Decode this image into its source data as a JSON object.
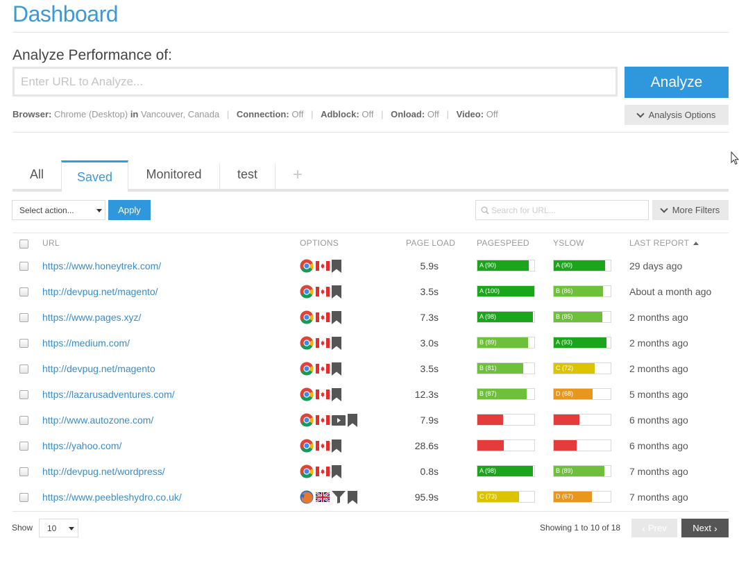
{
  "page": {
    "title": "Dashboard"
  },
  "analyze": {
    "heading": "Analyze Performance of:",
    "placeholder": "Enter URL to Analyze...",
    "button": "Analyze",
    "options_button": "Analysis Options"
  },
  "settings": {
    "browser_label": "Browser:",
    "browser_value": "Chrome (Desktop)",
    "in_label": "in",
    "location_value": "Vancouver, Canada",
    "connection_label": "Connection:",
    "connection_value": "Off",
    "adblock_label": "Adblock:",
    "adblock_value": "Off",
    "onload_label": "Onload:",
    "onload_value": "Off",
    "video_label": "Video:",
    "video_value": "Off",
    "separator": "|"
  },
  "tabs": [
    {
      "label": "All"
    },
    {
      "label": "Saved",
      "active": true
    },
    {
      "label": "Monitored"
    },
    {
      "label": "test"
    },
    {
      "label": "+"
    }
  ],
  "toolbar": {
    "select_action": "Select action...",
    "apply": "Apply",
    "search_placeholder": "Search for URL...",
    "more_filters": "More Filters"
  },
  "table": {
    "headers": {
      "url": "URL",
      "options": "OPTIONS",
      "page_load": "PAGE LOAD",
      "pagespeed": "PAGESPEED",
      "yslow": "YSLOW",
      "last_report": "LAST REPORT"
    },
    "sort": "last_report ascending",
    "rows": [
      {
        "url": "https://www.honeytrek.com/",
        "icons": [
          "chrome-icon",
          "canada-flag-icon",
          "bookmark-icon"
        ],
        "page_load": "5.9s",
        "pagespeed": {
          "label": "A (90)",
          "score": 90,
          "color": "#1aa51a"
        },
        "yslow": {
          "label": "A (90)",
          "score": 90,
          "color": "#1aa51a"
        },
        "last_report": "29 days ago"
      },
      {
        "url": "http://devpug.net/magento/",
        "icons": [
          "chrome-icon",
          "canada-flag-icon",
          "bookmark-icon"
        ],
        "page_load": "3.5s",
        "pagespeed": {
          "label": "A (100)",
          "score": 100,
          "color": "#1aa51a"
        },
        "yslow": {
          "label": "B (86)",
          "score": 86,
          "color": "#6ebf3a"
        },
        "last_report": "About a month ago"
      },
      {
        "url": "https://www.pages.xyz/",
        "icons": [
          "chrome-icon",
          "canada-flag-icon",
          "bookmark-icon"
        ],
        "page_load": "7.3s",
        "pagespeed": {
          "label": "A (98)",
          "score": 98,
          "color": "#1aa51a"
        },
        "yslow": {
          "label": "B (85)",
          "score": 85,
          "color": "#6ebf3a"
        },
        "last_report": "2 months ago"
      },
      {
        "url": "https://medium.com/",
        "icons": [
          "chrome-icon",
          "canada-flag-icon",
          "bookmark-icon"
        ],
        "page_load": "3.0s",
        "pagespeed": {
          "label": "B (89)",
          "score": 89,
          "color": "#6ebf3a"
        },
        "yslow": {
          "label": "A (93)",
          "score": 93,
          "color": "#1aa51a"
        },
        "last_report": "2 months ago"
      },
      {
        "url": "http://devpug.net/magento",
        "icons": [
          "chrome-icon",
          "canada-flag-icon",
          "bookmark-icon"
        ],
        "page_load": "3.5s",
        "pagespeed": {
          "label": "B (81)",
          "score": 81,
          "color": "#6ebf3a"
        },
        "yslow": {
          "label": "C (72)",
          "score": 72,
          "color": "#dcc300"
        },
        "last_report": "2 months ago"
      },
      {
        "url": "https://lazarusadventures.com/",
        "icons": [
          "chrome-icon",
          "canada-flag-icon",
          "bookmark-icon"
        ],
        "page_load": "12.3s",
        "pagespeed": {
          "label": "B (87)",
          "score": 87,
          "color": "#6ebf3a"
        },
        "yslow": {
          "label": "D (68)",
          "score": 68,
          "color": "#e8961e"
        },
        "last_report": "5 months ago"
      },
      {
        "url": "http://www.autozone.com/",
        "icons": [
          "chrome-icon",
          "canada-flag-icon",
          "video-icon",
          "bookmark-icon"
        ],
        "page_load": "7.9s",
        "pagespeed": {
          "label": "",
          "score": 45,
          "color": "#e43b3b"
        },
        "yslow": {
          "label": "",
          "score": 45,
          "color": "#e43b3b"
        },
        "last_report": "6 months ago"
      },
      {
        "url": "https://yahoo.com/",
        "icons": [
          "chrome-icon",
          "canada-flag-icon",
          "bookmark-icon"
        ],
        "page_load": "28.6s",
        "pagespeed": {
          "label": "",
          "score": 46,
          "color": "#e43b3b"
        },
        "yslow": {
          "label": "",
          "score": 40,
          "color": "#e43b3b"
        },
        "last_report": "6 months ago"
      },
      {
        "url": "http://devpug.net/wordpress/",
        "icons": [
          "chrome-icon",
          "canada-flag-icon",
          "bookmark-icon"
        ],
        "page_load": "0.8s",
        "pagespeed": {
          "label": "A (98)",
          "score": 98,
          "color": "#1aa51a"
        },
        "yslow": {
          "label": "B (89)",
          "score": 89,
          "color": "#6ebf3a"
        },
        "last_report": "7 months ago"
      },
      {
        "url": "https://www.peebleshydro.co.uk/",
        "icons": [
          "firefox-icon",
          "uk-flag-icon",
          "filter-icon",
          "bookmark-icon"
        ],
        "page_load": "95.9s",
        "pagespeed": {
          "label": "C (73)",
          "score": 73,
          "color": "#dcc300"
        },
        "yslow": {
          "label": "D (67)",
          "score": 67,
          "color": "#e8961e"
        },
        "last_report": "7 months ago"
      }
    ]
  },
  "footer": {
    "show_label": "Show",
    "page_size": "10",
    "showing": "Showing 1 to 10 of 18",
    "prev": "Prev",
    "next": "Next"
  }
}
